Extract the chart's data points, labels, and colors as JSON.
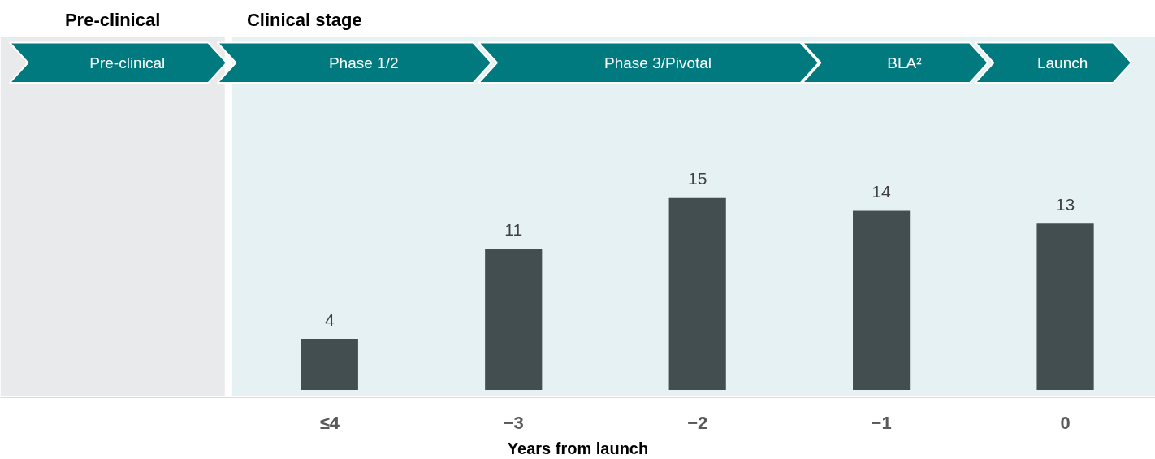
{
  "chart_data": {
    "type": "bar",
    "x": [
      -4,
      -3,
      -2,
      -1,
      0
    ],
    "values": [
      4,
      11,
      15,
      14,
      13
    ],
    "xlim": [
      -5.79,
      0.49
    ],
    "xticks": [
      {
        "value": -4,
        "label": "≤4"
      },
      -3,
      -2,
      -1,
      0
    ],
    "color": "#434e50",
    "data_labels": true,
    "xlabel": "Years from launch",
    "bands": [
      {
        "axis": "x",
        "from": -5.79,
        "to": -4.57,
        "label": "Pre-clinical",
        "color": "#e9eaeb"
      },
      {
        "axis": "x",
        "from": -4.53,
        "to": 0.49,
        "label": "Clinical stage",
        "color": "#e6f1f3"
      }
    ],
    "annotations": [
      "Pre-clinical",
      "Phase 1/2",
      "Phase 3/Pivotal",
      "BLA²",
      "Launch"
    ],
    "grid": false
  }
}
